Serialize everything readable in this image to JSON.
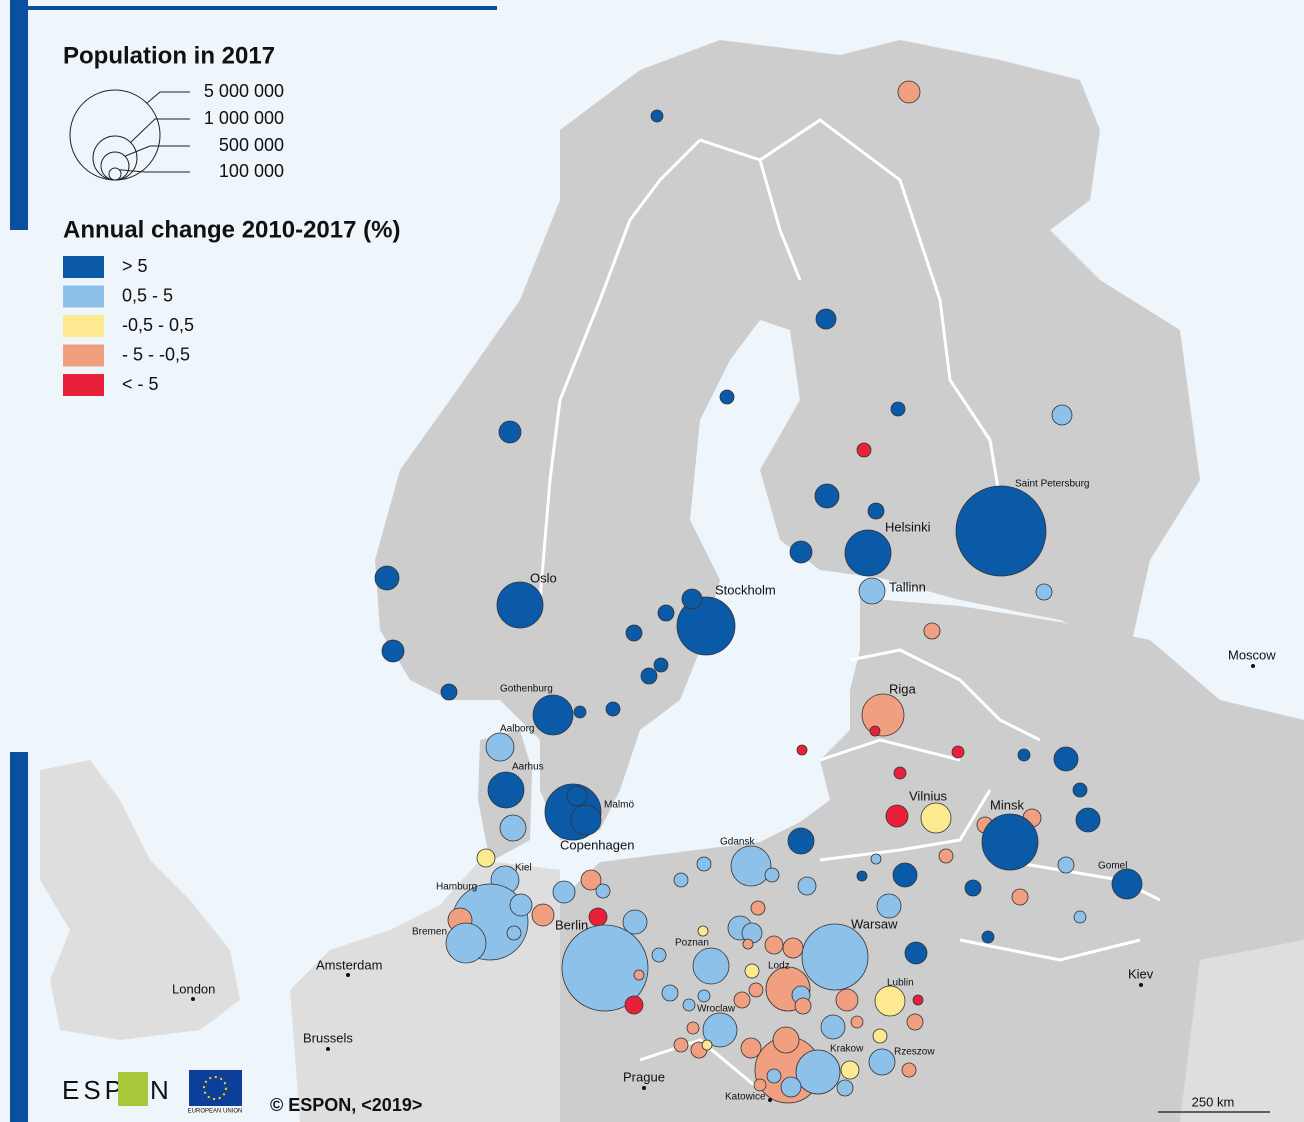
{
  "legend": {
    "size_title": "Population in 2017",
    "sizes": [
      "5 000 000",
      "1 000 000",
      "500 000",
      "100 000"
    ],
    "change_title": "Annual change 2010-2017 (%)",
    "classes": [
      {
        "label": "> 5",
        "color": "#0b5aa8"
      },
      {
        "label": "0,5 - 5",
        "color": "#8ec1ea"
      },
      {
        "label": "-0,5 - 0,5",
        "color": "#fde98f"
      },
      {
        "label": "- 5 - -0,5",
        "color": "#f0a080"
      },
      {
        "label": "< - 5",
        "color": "#e8203a"
      }
    ]
  },
  "cities": [
    "Oslo",
    "Stockholm",
    "Helsinki",
    "Tallinn",
    "Saint Petersburg",
    "Moscow",
    "Gothenburg",
    "Aalborg",
    "Aarhus",
    "Malmö",
    "Copenhagen",
    "Riga",
    "Vilnius",
    "Minsk",
    "Gomel",
    "Gdansk",
    "Kiel",
    "Hamburg",
    "Bremen",
    "Berlin",
    "Poznan",
    "Warsaw",
    "Lodz",
    "Lublin",
    "Wroclaw",
    "Krakow",
    "Rzeszow",
    "Katowice",
    "Amsterdam",
    "London",
    "Brussels",
    "Prague",
    "Kiev"
  ],
  "footer": {
    "logo_left": "ESP",
    "logo_right": "N",
    "eu": "EUROPEAN UNION",
    "copyright": "© ESPON, <2019>",
    "scale": "250 km"
  }
}
